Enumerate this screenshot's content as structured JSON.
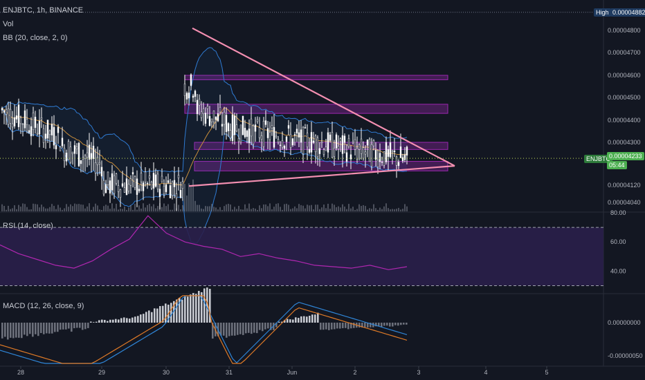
{
  "header": {
    "symbol_line": "ENJBTC, 1h, BINANCE",
    "vol_label": "Vol",
    "bb_label": "BB (20, close, 2, 0)",
    "rsi_label": "RSI (14, close)",
    "macd_label": "MACD (12, 26, close, 9)"
  },
  "badges": {
    "high_label": "High",
    "high_value": "0.00004882",
    "symbol_tag": "ENJBTC",
    "price_value": "0.00004233",
    "countdown": "05:44"
  },
  "colors": {
    "background": "#131722",
    "candle": "#ffffff",
    "bb_band": "#2f7bd3",
    "bb_basis": "#c98e3b",
    "trendline": "#f48fb1",
    "zone": "#9c27b0",
    "rsi_line": "#b027b0",
    "rsi_fill": "#2a1f4a",
    "macd_line": "#2f86d8",
    "signal_line": "#e07a26",
    "price_line": "#c5e05c",
    "price_tag_bg": "#4caf50"
  },
  "chart_data": [
    {
      "type": "candlestick",
      "pane": "price",
      "y_ticks": [
        "0.00004800",
        "0.00004700",
        "0.00004600",
        "0.00004500",
        "0.00004400",
        "0.00004300",
        "0.00004120",
        "0.00004040"
      ],
      "x_ticks": [
        "28",
        "29",
        "30",
        "31",
        "Jun",
        "2",
        "3",
        "4",
        "5"
      ],
      "current_price": 4.233e-05,
      "high": 4.882e-05,
      "resistance_trendline": {
        "from": {
          "date": "30",
          "price": 4.81e-05
        },
        "to": {
          "date": "3",
          "price": 4.23e-05
        }
      },
      "support_trendline": {
        "from": {
          "date": "30",
          "price": 4.16e-05
        },
        "to": {
          "date": "3",
          "price": 4.23e-05
        }
      },
      "zones": [
        {
          "price_low": 4.58e-05,
          "price_high": 4.6e-05
        },
        {
          "price_low": 4.43e-05,
          "price_high": 4.47e-05
        },
        {
          "price_low": 4.27e-05,
          "price_high": 4.3e-05
        },
        {
          "price_low": 4.18e-05,
          "price_high": 4.22e-05
        }
      ]
    },
    {
      "type": "line",
      "pane": "rsi",
      "y_ticks": [
        "80.00",
        "60.00",
        "40.00"
      ],
      "bands": [
        70,
        30
      ],
      "series": [
        {
          "values": [
            58,
            52,
            48,
            44,
            42,
            47,
            55,
            62,
            78,
            66,
            60,
            57,
            55,
            50,
            52,
            49,
            47,
            44,
            43,
            42,
            44,
            41,
            43
          ]
        }
      ]
    },
    {
      "type": "bar",
      "pane": "macd",
      "y_ticks": [
        "0.00000000",
        "-0.00000050"
      ],
      "x_ticks": [
        "28",
        "29",
        "30",
        "31",
        "Jun",
        "2",
        "3",
        "4",
        "5"
      ]
    }
  ]
}
